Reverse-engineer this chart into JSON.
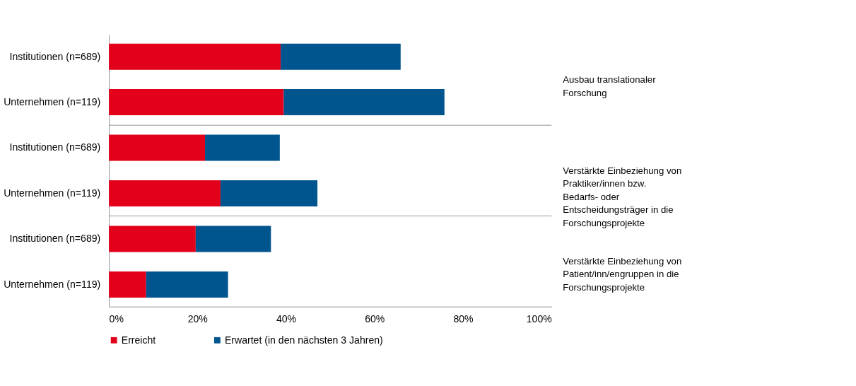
{
  "chart_data": {
    "type": "bar",
    "orientation": "horizontal",
    "stacked": true,
    "categories": [
      "Institutionen (n=689)",
      "Unternehmen (n=119)",
      "Institutionen (n=689)",
      "Unternehmen (n=119)",
      "Institutionen (n=689)",
      "Unternehmen (n=119)"
    ],
    "series": [
      {
        "name": "Erreicht",
        "color": "#e2001a",
        "values": [
          38.8,
          39.5,
          21.7,
          25.2,
          19.6,
          8.4
        ]
      },
      {
        "name": "Erwartet (in den nächsten 3 Jahren)",
        "color": "#00558f",
        "values": [
          27.1,
          36.3,
          16.9,
          21.9,
          17.0,
          18.5
        ]
      }
    ],
    "xlim": [
      0,
      100
    ],
    "xticks": [
      {
        "value": 0,
        "label": "0%"
      },
      {
        "value": 20,
        "label": "20%"
      },
      {
        "value": 40,
        "label": "40%"
      },
      {
        "value": 60,
        "label": "60%"
      },
      {
        "value": 80,
        "label": "80%"
      },
      {
        "value": 100,
        "label": "100%"
      }
    ],
    "annotations": [
      "Ausbau translationaler Forschung",
      "Verstärkte Einbeziehung von Praktiker/innen bzw. Bedarfs- oder Entscheidungsträger in die Forschungsprojekte",
      "Verstärkte Einbeziehung von Patient/inn/engruppen in die Forschungsprojekte"
    ],
    "grid": false,
    "legend": "bottom"
  }
}
